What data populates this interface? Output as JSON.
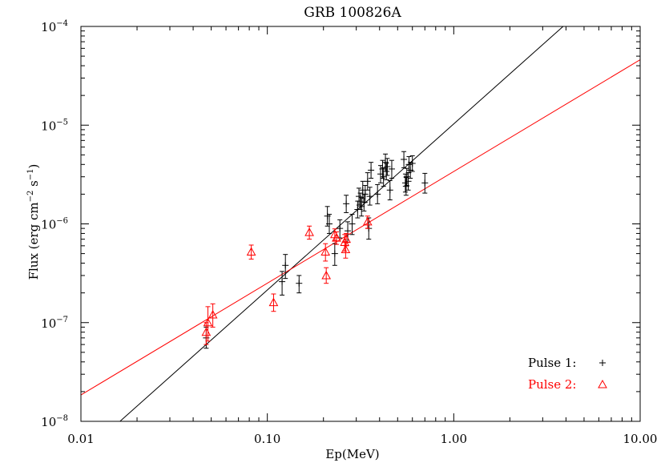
{
  "chart_data": {
    "type": "scatter",
    "title": "GRB 100826A",
    "xlabel": "Ep(MeV)",
    "ylabel": "Flux (erg cm",
    "ylabel_sup1": "−2",
    "ylabel_mid": " s",
    "ylabel_sup2": "−1",
    "ylabel_end": ")",
    "x_scale": "log",
    "y_scale": "log",
    "xlim": [
      0.01,
      10.0
    ],
    "ylim": [
      1e-08,
      0.0001
    ],
    "x_ticks": [
      {
        "value": 0.01,
        "label": "0.01"
      },
      {
        "value": 0.1,
        "label": "0.10"
      },
      {
        "value": 1.0,
        "label": "1.00"
      },
      {
        "value": 10.0,
        "label": "10.00"
      }
    ],
    "y_ticks": [
      {
        "value": 1e-08,
        "base": "10",
        "exp": "−8"
      },
      {
        "value": 1e-07,
        "base": "10",
        "exp": "−7"
      },
      {
        "value": 1e-06,
        "base": "10",
        "exp": "−6"
      },
      {
        "value": 1e-05,
        "base": "10",
        "exp": "−5"
      },
      {
        "value": 0.0001,
        "base": "10",
        "exp": "−4"
      }
    ],
    "grid": false,
    "legend_position": "bottom-right",
    "series": [
      {
        "name": "Pulse 1:",
        "marker": "+",
        "color": "#000000",
        "fit": {
          "x": [
            0.0162,
            3.86
          ],
          "y": [
            1e-08,
            0.0001
          ]
        },
        "points": [
          {
            "x": 0.047,
            "y": 7e-08,
            "lo": 5.5e-08,
            "hi": 9e-08
          },
          {
            "x": 0.12,
            "y": 2.6e-07,
            "lo": 1.9e-07,
            "hi": 3.3e-07
          },
          {
            "x": 0.125,
            "y": 3.8e-07,
            "lo": 2.8e-07,
            "hi": 4.9e-07
          },
          {
            "x": 0.148,
            "y": 2.5e-07,
            "lo": 2e-07,
            "hi": 3e-07
          },
          {
            "x": 0.21,
            "y": 1.2e-06,
            "lo": 9.5e-07,
            "hi": 1.5e-06
          },
          {
            "x": 0.215,
            "y": 1e-06,
            "lo": 8e-07,
            "hi": 1.25e-06
          },
          {
            "x": 0.23,
            "y": 5e-07,
            "lo": 3.8e-07,
            "hi": 6.3e-07
          },
          {
            "x": 0.245,
            "y": 9e-07,
            "lo": 7.2e-07,
            "hi": 1.1e-06
          },
          {
            "x": 0.265,
            "y": 1.6e-06,
            "lo": 1.3e-06,
            "hi": 1.95e-06
          },
          {
            "x": 0.27,
            "y": 8.5e-07,
            "lo": 6.5e-07,
            "hi": 1.05e-06
          },
          {
            "x": 0.285,
            "y": 1e-06,
            "lo": 7.8e-07,
            "hi": 1.25e-06
          },
          {
            "x": 0.305,
            "y": 1.4e-06,
            "lo": 1.15e-06,
            "hi": 1.7e-06
          },
          {
            "x": 0.31,
            "y": 1.9e-06,
            "lo": 1.55e-06,
            "hi": 2.3e-06
          },
          {
            "x": 0.315,
            "y": 1.7e-06,
            "lo": 1.4e-06,
            "hi": 2.05e-06
          },
          {
            "x": 0.32,
            "y": 1.5e-06,
            "lo": 1.2e-06,
            "hi": 1.85e-06
          },
          {
            "x": 0.325,
            "y": 2.2e-06,
            "lo": 1.8e-06,
            "hi": 2.7e-06
          },
          {
            "x": 0.33,
            "y": 1.65e-06,
            "lo": 1.35e-06,
            "hi": 2e-06
          },
          {
            "x": 0.335,
            "y": 2e-06,
            "lo": 1.65e-06,
            "hi": 2.45e-06
          },
          {
            "x": 0.345,
            "y": 2.7e-06,
            "lo": 2.2e-06,
            "hi": 3.3e-06
          },
          {
            "x": 0.35,
            "y": 9e-07,
            "lo": 7e-07,
            "hi": 1.15e-06
          },
          {
            "x": 0.355,
            "y": 1.9e-06,
            "lo": 1.55e-06,
            "hi": 2.35e-06
          },
          {
            "x": 0.36,
            "y": 3.5e-06,
            "lo": 2.9e-06,
            "hi": 4.2e-06
          },
          {
            "x": 0.39,
            "y": 2e-06,
            "lo": 1.6e-06,
            "hi": 2.5e-06
          },
          {
            "x": 0.405,
            "y": 3.2e-06,
            "lo": 2.6e-06,
            "hi": 3.9e-06
          },
          {
            "x": 0.415,
            "y": 3.6e-06,
            "lo": 2.9e-06,
            "hi": 4.4e-06
          },
          {
            "x": 0.42,
            "y": 3e-06,
            "lo": 2.4e-06,
            "hi": 3.7e-06
          },
          {
            "x": 0.43,
            "y": 4.2e-06,
            "lo": 3.4e-06,
            "hi": 5.1e-06
          },
          {
            "x": 0.435,
            "y": 3.4e-06,
            "lo": 2.8e-06,
            "hi": 4.1e-06
          },
          {
            "x": 0.44,
            "y": 3.8e-06,
            "lo": 3.1e-06,
            "hi": 4.6e-06
          },
          {
            "x": 0.455,
            "y": 2.2e-06,
            "lo": 1.75e-06,
            "hi": 2.75e-06
          },
          {
            "x": 0.465,
            "y": 3.6e-06,
            "lo": 2.9e-06,
            "hi": 4.4e-06
          },
          {
            "x": 0.54,
            "y": 4.5e-06,
            "lo": 3.7e-06,
            "hi": 5.4e-06
          },
          {
            "x": 0.55,
            "y": 2.6e-06,
            "lo": 2.1e-06,
            "hi": 3.2e-06
          },
          {
            "x": 0.555,
            "y": 2.4e-06,
            "lo": 1.95e-06,
            "hi": 2.95e-06
          },
          {
            "x": 0.56,
            "y": 3e-06,
            "lo": 2.45e-06,
            "hi": 3.65e-06
          },
          {
            "x": 0.57,
            "y": 2.7e-06,
            "lo": 2.2e-06,
            "hi": 3.3e-06
          },
          {
            "x": 0.575,
            "y": 4e-06,
            "lo": 3.3e-06,
            "hi": 4.8e-06
          },
          {
            "x": 0.585,
            "y": 3.5e-06,
            "lo": 2.9e-06,
            "hi": 4.2e-06
          },
          {
            "x": 0.6,
            "y": 4.1e-06,
            "lo": 3.4e-06,
            "hi": 4.9e-06
          },
          {
            "x": 0.7,
            "y": 2.6e-06,
            "lo": 2.05e-06,
            "hi": 3.25e-06
          }
        ]
      },
      {
        "name": "Pulse 2:",
        "marker": "triangle",
        "color": "#ff0000",
        "fit": {
          "x": [
            0.01,
            10.0
          ],
          "y": [
            1.85e-08,
            4.6e-05
          ]
        },
        "points": [
          {
            "x": 0.047,
            "y": 8e-08,
            "lo": 6e-08,
            "hi": 1e-07
          },
          {
            "x": 0.048,
            "y": 1e-07,
            "lo": 6.5e-08,
            "hi": 1.45e-07
          },
          {
            "x": 0.051,
            "y": 1.2e-07,
            "lo": 9e-08,
            "hi": 1.55e-07
          },
          {
            "x": 0.082,
            "y": 5.2e-07,
            "lo": 4.4e-07,
            "hi": 6.1e-07
          },
          {
            "x": 0.108,
            "y": 1.6e-07,
            "lo": 1.3e-07,
            "hi": 1.95e-07
          },
          {
            "x": 0.168,
            "y": 8.2e-07,
            "lo": 7e-07,
            "hi": 9.5e-07
          },
          {
            "x": 0.205,
            "y": 5.2e-07,
            "lo": 4.2e-07,
            "hi": 6.3e-07
          },
          {
            "x": 0.207,
            "y": 3e-07,
            "lo": 2.5e-07,
            "hi": 3.6e-07
          },
          {
            "x": 0.23,
            "y": 7.8e-07,
            "lo": 6.8e-07,
            "hi": 8.9e-07
          },
          {
            "x": 0.235,
            "y": 7.2e-07,
            "lo": 6.2e-07,
            "hi": 8.3e-07
          },
          {
            "x": 0.26,
            "y": 6.5e-07,
            "lo": 5.3e-07,
            "hi": 7.8e-07
          },
          {
            "x": 0.263,
            "y": 5.5e-07,
            "lo": 4.5e-07,
            "hi": 6.6e-07
          },
          {
            "x": 0.265,
            "y": 7e-07,
            "lo": 6e-07,
            "hi": 8e-07
          },
          {
            "x": 0.345,
            "y": 1.05e-06,
            "lo": 9e-07,
            "hi": 1.2e-06
          }
        ]
      }
    ]
  }
}
